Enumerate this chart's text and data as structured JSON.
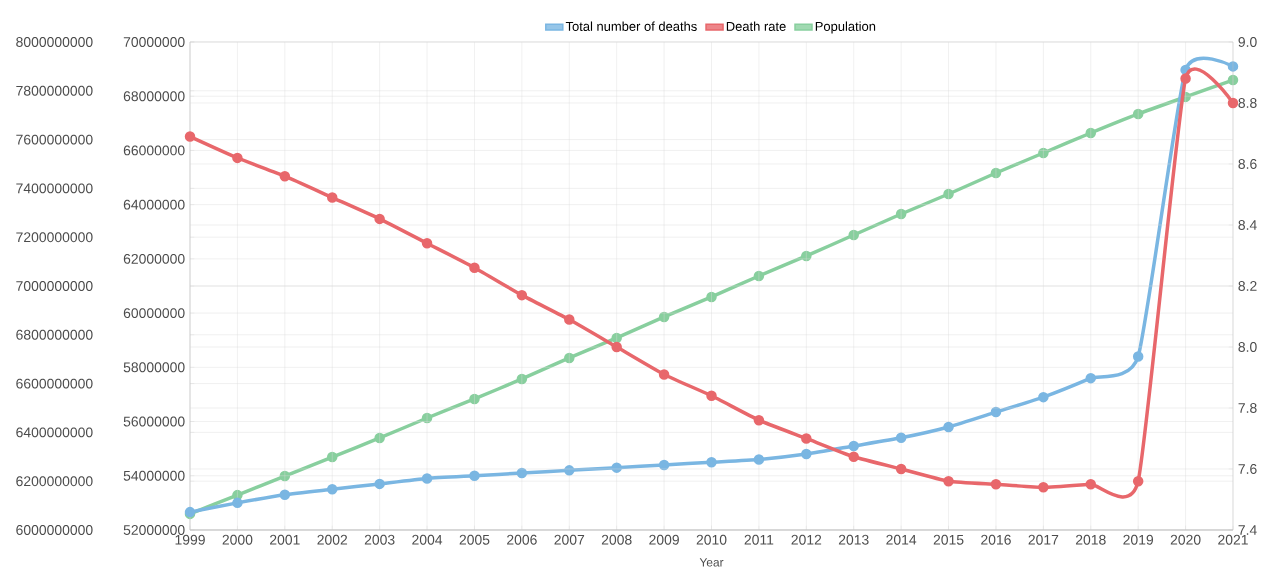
{
  "chart_data": {
    "type": "line",
    "xlabel": "Year",
    "categories": [
      "1999",
      "2000",
      "2001",
      "2002",
      "2003",
      "2004",
      "2005",
      "2006",
      "2007",
      "2008",
      "2009",
      "2010",
      "2011",
      "2012",
      "2013",
      "2014",
      "2015",
      "2016",
      "2017",
      "2018",
      "2019",
      "2020",
      "2021"
    ],
    "series": [
      {
        "name": "Total number of deaths",
        "color": "#7ab6e2",
        "axis": "y2",
        "values": [
          52660000,
          53000000,
          53300000,
          53500000,
          53700000,
          53900000,
          54000000,
          54100000,
          54200000,
          54300000,
          54400000,
          54500000,
          54600000,
          54800000,
          55100000,
          55400000,
          55800000,
          56350000,
          56900000,
          57600000,
          58400000,
          68970000,
          69100000
        ]
      },
      {
        "name": "Death rate",
        "color": "#e8676b",
        "axis": "y3",
        "values": [
          8.69,
          8.62,
          8.56,
          8.49,
          8.42,
          8.34,
          8.26,
          8.17,
          8.09,
          8.0,
          7.91,
          7.84,
          7.76,
          7.7,
          7.64,
          7.6,
          7.56,
          7.55,
          7.54,
          7.55,
          7.56,
          8.88,
          8.8
        ]
      },
      {
        "name": "Population",
        "color": "#88cf9e",
        "values": [
          6066000000,
          6143000000,
          6221000000,
          6299000000,
          6377000000,
          6459000000,
          6537000000,
          6619000000,
          6705000000,
          6787000000,
          6873000000,
          6955000000,
          7041000000,
          7123000000,
          7209000000,
          7295000000,
          7377000000,
          7463000000,
          7545000000,
          7627000000,
          7705000000,
          7775000000,
          7844000000
        ]
      }
    ],
    "ylim": [
      6000000000,
      8000000000
    ],
    "yticks": [
      6000000000,
      6200000000,
      6400000000,
      6600000000,
      6800000000,
      7000000000,
      7200000000,
      7400000000,
      7600000000,
      7800000000,
      8000000000
    ],
    "y2lim": [
      52000000,
      70000000
    ],
    "y2ticks": [
      52000000,
      54000000,
      56000000,
      58000000,
      60000000,
      62000000,
      64000000,
      66000000,
      68000000,
      70000000
    ],
    "y3lim": [
      7.4,
      9.0
    ],
    "y3ticks": [
      7.4,
      7.6,
      7.8,
      {
        "value": 8.0,
        "label": "8.0"
      },
      8.2,
      8.4,
      8.6,
      8.8,
      {
        "value": 9.0,
        "label": "9.0"
      }
    ],
    "grid": true,
    "legend": "top",
    "marker": "circle",
    "line_style": "solid"
  }
}
